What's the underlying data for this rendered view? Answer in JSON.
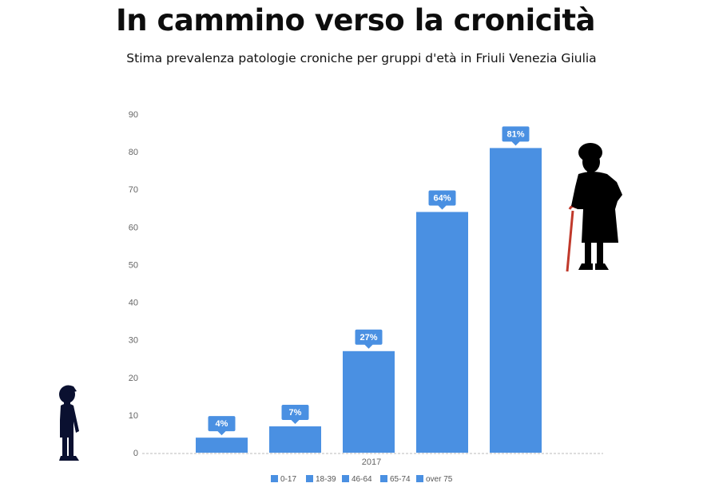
{
  "header": {
    "title": "In cammino verso la cronicità",
    "subtitle": "Stima prevalenza patologie croniche per gruppi d'età in Friuli Venezia Giulia"
  },
  "icons": {
    "left": "child-silhouette-icon",
    "right": "elderly-woman-with-cane-silhouette-icon"
  },
  "colors": {
    "bar": "#4a90e2",
    "silhouette": "#0a1030",
    "elderly_silhouette": "#000000",
    "cane": "#c0392b",
    "axis_text": "#666666",
    "baseline": "#bbbbbb"
  },
  "chart_data": {
    "type": "bar",
    "categories": [
      "2017"
    ],
    "series": [
      {
        "name": "0-17",
        "values": [
          4
        ],
        "label": "4%"
      },
      {
        "name": "18-39",
        "values": [
          7
        ],
        "label": "7%"
      },
      {
        "name": "46-64",
        "values": [
          27
        ],
        "label": "27%"
      },
      {
        "name": "65-74",
        "values": [
          64
        ],
        "label": "64%"
      },
      {
        "name": "over 75",
        "values": [
          81
        ],
        "label": "81%"
      }
    ],
    "ylim": [
      0,
      90
    ],
    "yticks": [
      "0",
      "10",
      "20",
      "30",
      "40",
      "50",
      "60",
      "70",
      "80",
      "90"
    ],
    "grid": false,
    "legend": "bottom"
  }
}
